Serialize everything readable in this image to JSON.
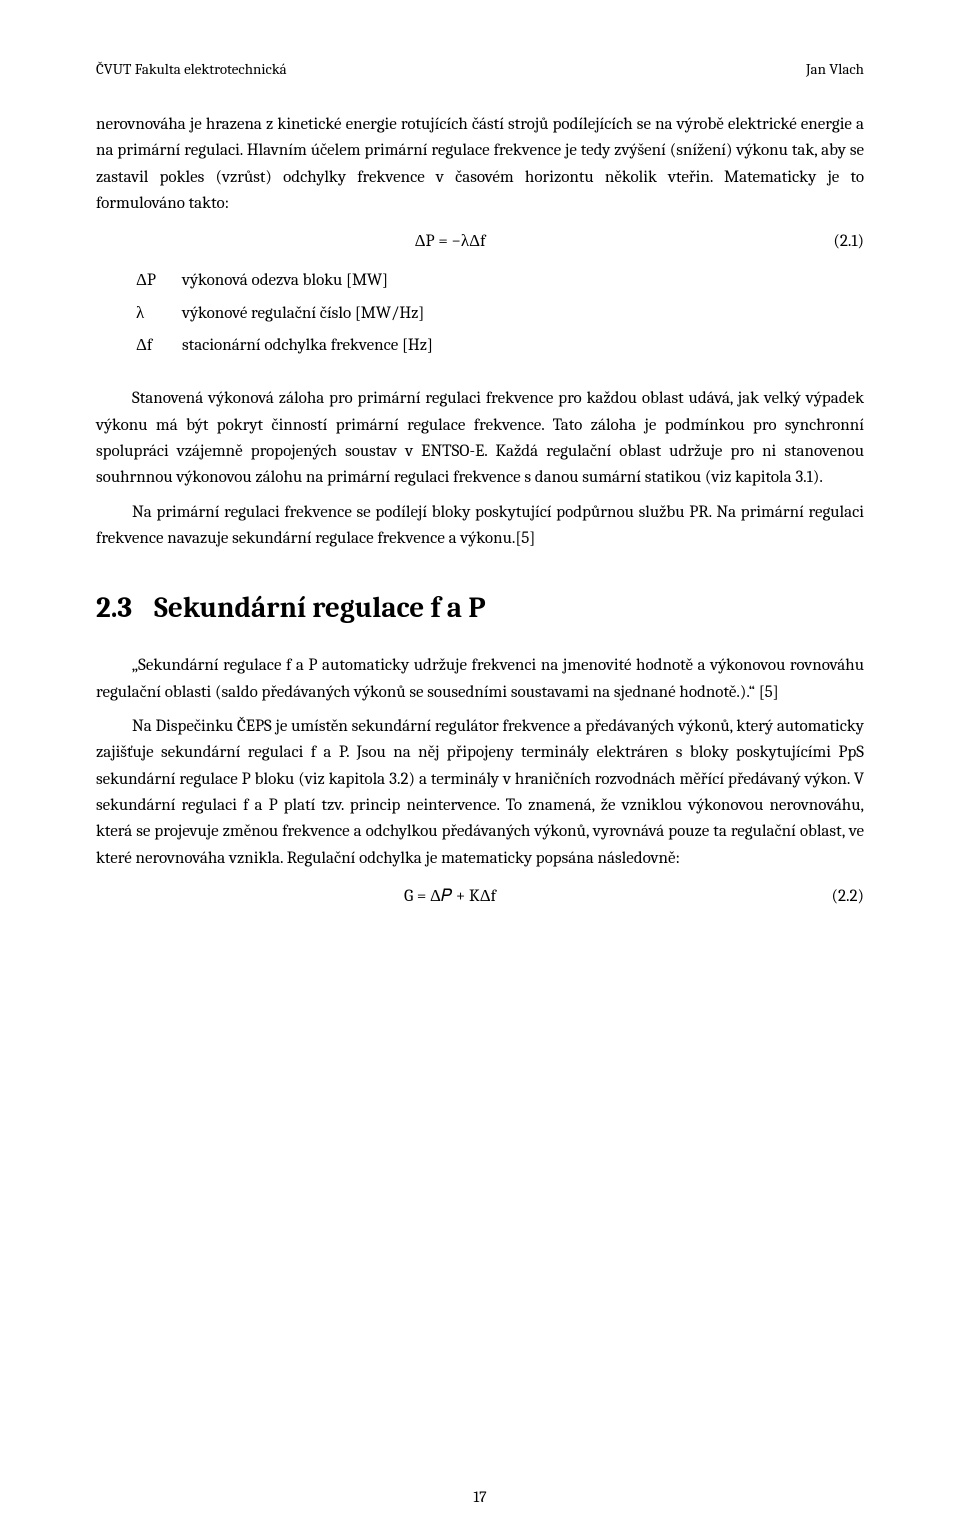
{
  "header": {
    "left": "ČVUT Fakulta elektrotechnická",
    "right": "Jan Vlach"
  },
  "p1": "nerovnováha je hrazena z kinetické energie rotujících částí strojů podílejících se na výrobě elektrické energie a na primární regulaci. Hlavním účelem primární regulace frekvence je tedy zvýšení (snížení) výkonu tak, aby se zastavil pokles (vzrůst) odchylky frekvence v časovém horizontu několik vteřin. Matematicky je to formulováno takto:",
  "eq1": {
    "expr": "ΔP = −λΔf",
    "num": "(2.1)"
  },
  "defs": [
    {
      "sym": "ΔP",
      "def": "výkonová odezva bloku [MW]"
    },
    {
      "sym": "λ",
      "def": "výkonové regulační číslo [MW/Hz]"
    },
    {
      "sym": "Δf",
      "def": "stacionární odchylka frekvence [Hz]"
    }
  ],
  "p2": "Stanovená výkonová záloha pro primární regulaci frekvence pro každou oblast udává, jak velký výpadek výkonu má být pokryt činností primární regulace frekvence. Tato záloha je podmínkou pro synchronní spolupráci vzájemně propojených soustav v ENTSO-E. Každá regulační oblast udržuje pro ni stanovenou souhrnnou výkonovou zálohu na primární regulaci frekvence s danou sumární statikou (viz kapitola 3.1).",
  "p3": "Na primární regulaci frekvence se podílejí bloky poskytující podpůrnou službu PR. Na primární regulaci frekvence navazuje sekundární regulace frekvence a výkonu.[5]",
  "section": {
    "num": "2.3",
    "title": "Sekundární regulace f a P"
  },
  "p4": "„Sekundární regulace f a P automaticky udržuje frekvenci na jmenovité hodnotě a výkonovou rovnováhu regulační oblasti (saldo předávaných výkonů se sousedními soustavami na sjednané hodnotě.).“ [5]",
  "p5": "Na Dispečinku ČEPS je umístěn sekundární regulátor frekvence a předávaných výkonů, který automaticky zajišťuje sekundární regulaci f a P. Jsou na něj připojeny terminály elektráren s bloky poskytujícími PpS sekundární regulace P bloku (viz kapitola 3.2) a terminály v hraničních rozvodnách měřící předávaný výkon. V sekundární regulaci f a P platí tzv. princip neintervence. To znamená, že vzniklou výkonovou nerovnováhu, která se projevuje změnou frekvence a odchylkou předávaných výkonů, vyrovnává pouze ta regulační oblast, ve které nerovnováha vznikla. Regulační odchylka je matematicky popsána následovně:",
  "eq2": {
    "expr": "G = Δ𝑃 + KΔf",
    "num": "(2.2)"
  },
  "pageNumber": "17"
}
